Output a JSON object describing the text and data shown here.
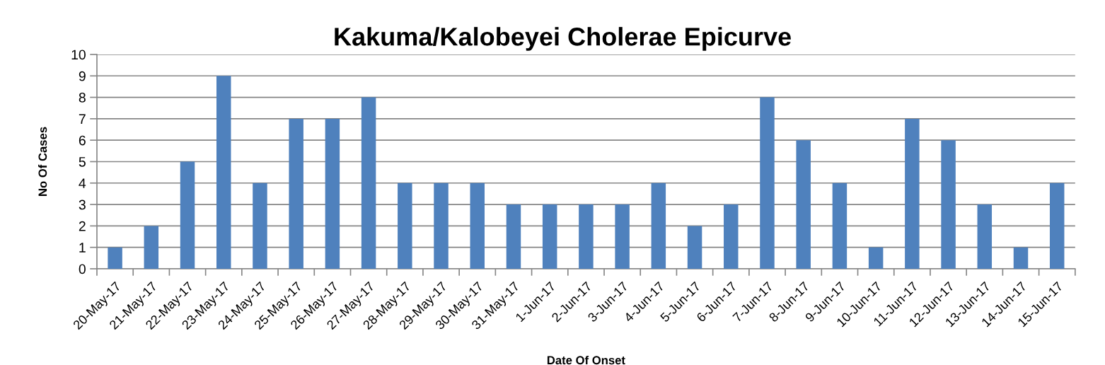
{
  "chart_data": {
    "type": "bar",
    "title": "Kakuma/Kalobeyei Cholerae Epicurve",
    "xlabel": "Date Of Onset",
    "ylabel": "No Of Cases",
    "categories": [
      "20-May-17",
      "21-May-17",
      "22-May-17",
      "23-May-17",
      "24-May-17",
      "25-May-17",
      "26-May-17",
      "27-May-17",
      "28-May-17",
      "29-May-17",
      "30-May-17",
      "31-May-17",
      "1-Jun-17",
      "2-Jun-17",
      "3-Jun-17",
      "4-Jun-17",
      "5-Jun-17",
      "6-Jun-17",
      "7-Jun-17",
      "8-Jun-17",
      "9-Jun-17",
      "10-Jun-17",
      "11-Jun-17",
      "12-Jun-17",
      "13-Jun-17",
      "14-Jun-17",
      "15-Jun-17"
    ],
    "values": [
      1,
      2,
      5,
      9,
      4,
      7,
      7,
      8,
      4,
      4,
      4,
      3,
      3,
      3,
      3,
      4,
      2,
      3,
      8,
      6,
      4,
      1,
      7,
      6,
      3,
      1,
      4
    ],
    "color": "#4f81bd",
    "ylim": [
      0,
      10
    ],
    "yticks": [
      0,
      1,
      2,
      3,
      4,
      5,
      6,
      7,
      8,
      9,
      10
    ],
    "grid": "y"
  }
}
